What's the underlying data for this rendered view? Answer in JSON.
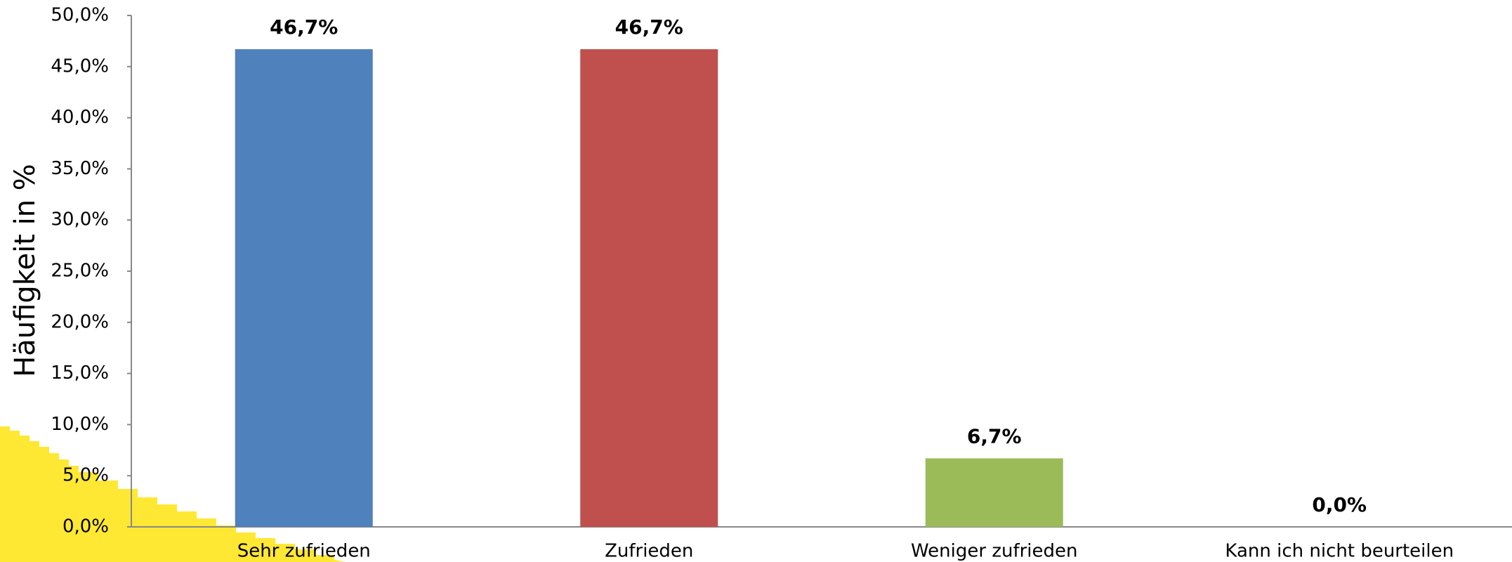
{
  "chart_data": {
    "type": "bar",
    "y_label": "Häufigkeit in %",
    "categories": [
      "Sehr zufrieden",
      "Zufrieden",
      "Weniger zufrieden",
      "Kann ich nicht beurteilen"
    ],
    "values": [
      46.7,
      46.7,
      6.7,
      0.0
    ],
    "value_labels": [
      "46,7%",
      "46,7%",
      "6,7%",
      "0,0%"
    ],
    "colors": [
      "#4f81bd",
      "#c0504d",
      "#9bbb59",
      "#8064a2"
    ],
    "ylim": [
      0,
      50
    ],
    "yticks": [
      {
        "value": 0,
        "label": "0,0%"
      },
      {
        "value": 5,
        "label": "5,0%"
      },
      {
        "value": 10,
        "label": "10,0%"
      },
      {
        "value": 15,
        "label": "15,0%"
      },
      {
        "value": 20,
        "label": "20,0%"
      },
      {
        "value": 25,
        "label": "25,0%"
      },
      {
        "value": 30,
        "label": "30,0%"
      },
      {
        "value": 35,
        "label": "35,0%"
      },
      {
        "value": 40,
        "label": "40,0%"
      },
      {
        "value": 45,
        "label": "45,0%"
      },
      {
        "value": 50,
        "label": "50,0%"
      }
    ],
    "grid": false
  }
}
